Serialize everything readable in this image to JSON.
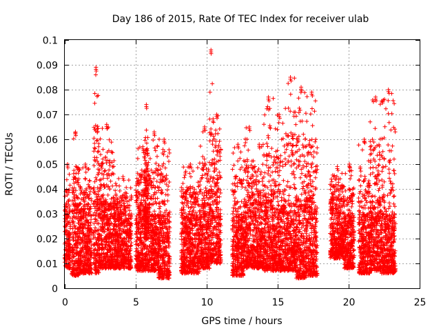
{
  "chart_data": {
    "type": "scatter",
    "title": "Day 186 of 2015, Rate Of TEC Index for receiver ulab",
    "xlabel": "GPS time / hours",
    "ylabel": "ROTI / TECUs",
    "xlim": [
      0,
      25
    ],
    "ylim": [
      0,
      0.1
    ],
    "x_ticks": [
      0,
      5,
      10,
      15,
      20,
      25
    ],
    "x_tick_labels": [
      "0",
      "5",
      "10",
      "15",
      "20",
      "25"
    ],
    "y_ticks": [
      0,
      0.01,
      0.02,
      0.03,
      0.04,
      0.05,
      0.06,
      0.07,
      0.08,
      0.09,
      0.1
    ],
    "y_tick_labels": [
      "0",
      "0.01",
      "0.02",
      "0.03",
      "0.04",
      "0.05",
      "0.06",
      "0.07",
      "0.08",
      "0.09",
      "0.1"
    ],
    "grid": true,
    "marker": "+",
    "colors": {
      "points": "#ff0000",
      "grid": "#a0a0a0",
      "axes": "#000000"
    },
    "clusters": [
      {
        "x": [
          0.0,
          0.4
        ],
        "base": 0.008,
        "top": 0.032,
        "peak": 0.05
      },
      {
        "x": [
          0.5,
          1.0
        ],
        "base": 0.005,
        "top": 0.035,
        "peak": 0.063
      },
      {
        "x": [
          1.0,
          1.9
        ],
        "base": 0.006,
        "top": 0.03,
        "peak": 0.05
      },
      {
        "x": [
          2.0,
          2.4
        ],
        "base": 0.006,
        "top": 0.036,
        "peak": 0.089
      },
      {
        "x": [
          2.4,
          3.5
        ],
        "base": 0.008,
        "top": 0.035,
        "peak": 0.066
      },
      {
        "x": [
          3.5,
          4.7
        ],
        "base": 0.008,
        "top": 0.03,
        "peak": 0.045
      },
      {
        "x": [
          5.0,
          6.0
        ],
        "base": 0.007,
        "top": 0.035,
        "peak": 0.057
      },
      {
        "x": [
          5.6,
          5.9
        ],
        "base": 0.02,
        "top": 0.045,
        "peak": 0.074
      },
      {
        "x": [
          6.0,
          6.6
        ],
        "base": 0.007,
        "top": 0.03,
        "peak": 0.063
      },
      {
        "x": [
          6.6,
          7.4
        ],
        "base": 0.004,
        "top": 0.03,
        "peak": 0.06
      },
      {
        "x": [
          8.2,
          9.5
        ],
        "base": 0.006,
        "top": 0.03,
        "peak": 0.05
      },
      {
        "x": [
          9.5,
          10.2
        ],
        "base": 0.008,
        "top": 0.035,
        "peak": 0.065
      },
      {
        "x": [
          10.2,
          10.4
        ],
        "base": 0.01,
        "top": 0.04,
        "peak": 0.096
      },
      {
        "x": [
          10.4,
          11.0
        ],
        "base": 0.01,
        "top": 0.04,
        "peak": 0.07
      },
      {
        "x": [
          11.8,
          12.6
        ],
        "base": 0.005,
        "top": 0.03,
        "peak": 0.058
      },
      {
        "x": [
          12.6,
          13.4
        ],
        "base": 0.008,
        "top": 0.035,
        "peak": 0.065
      },
      {
        "x": [
          13.4,
          14.0
        ],
        "base": 0.008,
        "top": 0.035,
        "peak": 0.058
      },
      {
        "x": [
          14.0,
          14.7
        ],
        "base": 0.007,
        "top": 0.036,
        "peak": 0.077
      },
      {
        "x": [
          14.7,
          15.5
        ],
        "base": 0.007,
        "top": 0.034,
        "peak": 0.07
      },
      {
        "x": [
          15.5,
          16.3
        ],
        "base": 0.007,
        "top": 0.035,
        "peak": 0.085
      },
      {
        "x": [
          16.3,
          17.0
        ],
        "base": 0.004,
        "top": 0.036,
        "peak": 0.081
      },
      {
        "x": [
          17.0,
          17.8
        ],
        "base": 0.005,
        "top": 0.036,
        "peak": 0.079
      },
      {
        "x": [
          18.7,
          19.7
        ],
        "base": 0.012,
        "top": 0.033,
        "peak": 0.049
      },
      {
        "x": [
          19.7,
          20.4
        ],
        "base": 0.008,
        "top": 0.03,
        "peak": 0.05
      },
      {
        "x": [
          20.7,
          21.5
        ],
        "base": 0.006,
        "top": 0.03,
        "peak": 0.06
      },
      {
        "x": [
          21.5,
          22.3
        ],
        "base": 0.007,
        "top": 0.035,
        "peak": 0.077
      },
      {
        "x": [
          22.3,
          23.3
        ],
        "base": 0.006,
        "top": 0.03,
        "peak": 0.08
      }
    ]
  }
}
